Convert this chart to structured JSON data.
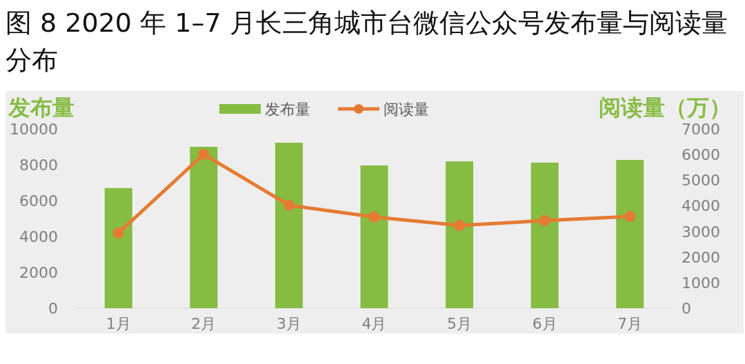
{
  "chart_data": {
    "type": "bar",
    "title": "图 8 2020 年 1–7 月长三角城市台微信公众号发布量与阅读量分布",
    "ylabel": "发布量",
    "y2label": "阅读量（万）",
    "categories": [
      "1月",
      "2月",
      "3月",
      "4月",
      "5月",
      "6月",
      "7月"
    ],
    "series": [
      {
        "name": "发布量",
        "color": "#86bc42",
        "values": [
          6700,
          9000,
          9230,
          7960,
          8190,
          8120,
          8270
        ]
      },
      {
        "name": "阅读量",
        "type": "line",
        "axis": "y2",
        "color": "#e57b33",
        "marker": "circle",
        "values": [
          2940,
          6010,
          4020,
          3560,
          3230,
          3420,
          3580
        ]
      }
    ],
    "ylim": [
      0,
      10000
    ],
    "yticks": [
      0,
      2000,
      4000,
      6000,
      8000,
      10000
    ],
    "y2lim": [
      0,
      7000
    ],
    "y2ticks": [
      0,
      1000,
      2000,
      3000,
      4000,
      5000,
      6000,
      7000
    ],
    "grid": false,
    "legend": "top"
  }
}
